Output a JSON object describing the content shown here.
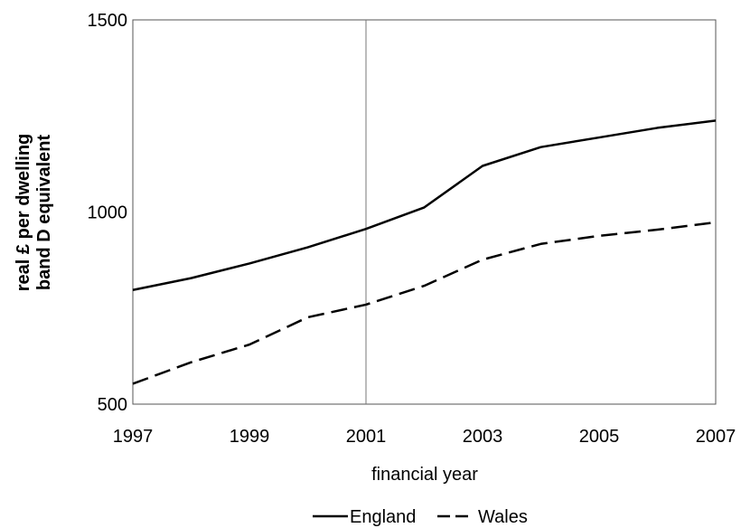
{
  "chart_data": {
    "type": "line",
    "title": "",
    "xlabel": "financial year",
    "ylabel_lines": [
      "real £ per dwelling",
      "band D equivalent"
    ],
    "x": [
      1997,
      1998,
      1999,
      2000,
      2001,
      2002,
      2003,
      2004,
      2005,
      2006,
      2007
    ],
    "xlim": [
      1997,
      2007
    ],
    "ylim": [
      500,
      1500
    ],
    "xticks": [
      "1997",
      "1999",
      "2001",
      "2003",
      "2005",
      "2007"
    ],
    "yticks": [
      "500",
      "1000",
      "1500"
    ],
    "reference_line_x": 2001,
    "grid": false,
    "legend_position": "bottom",
    "series": [
      {
        "name": "England",
        "style": "solid",
        "color": "#000000",
        "values": [
          797,
          828,
          866,
          908,
          956,
          1012,
          1120,
          1169,
          1194,
          1219,
          1238
        ]
      },
      {
        "name": "Wales",
        "style": "dashed",
        "color": "#000000",
        "values": [
          553,
          609,
          655,
          726,
          759,
          808,
          876,
          917,
          938,
          954,
          973
        ]
      }
    ]
  }
}
